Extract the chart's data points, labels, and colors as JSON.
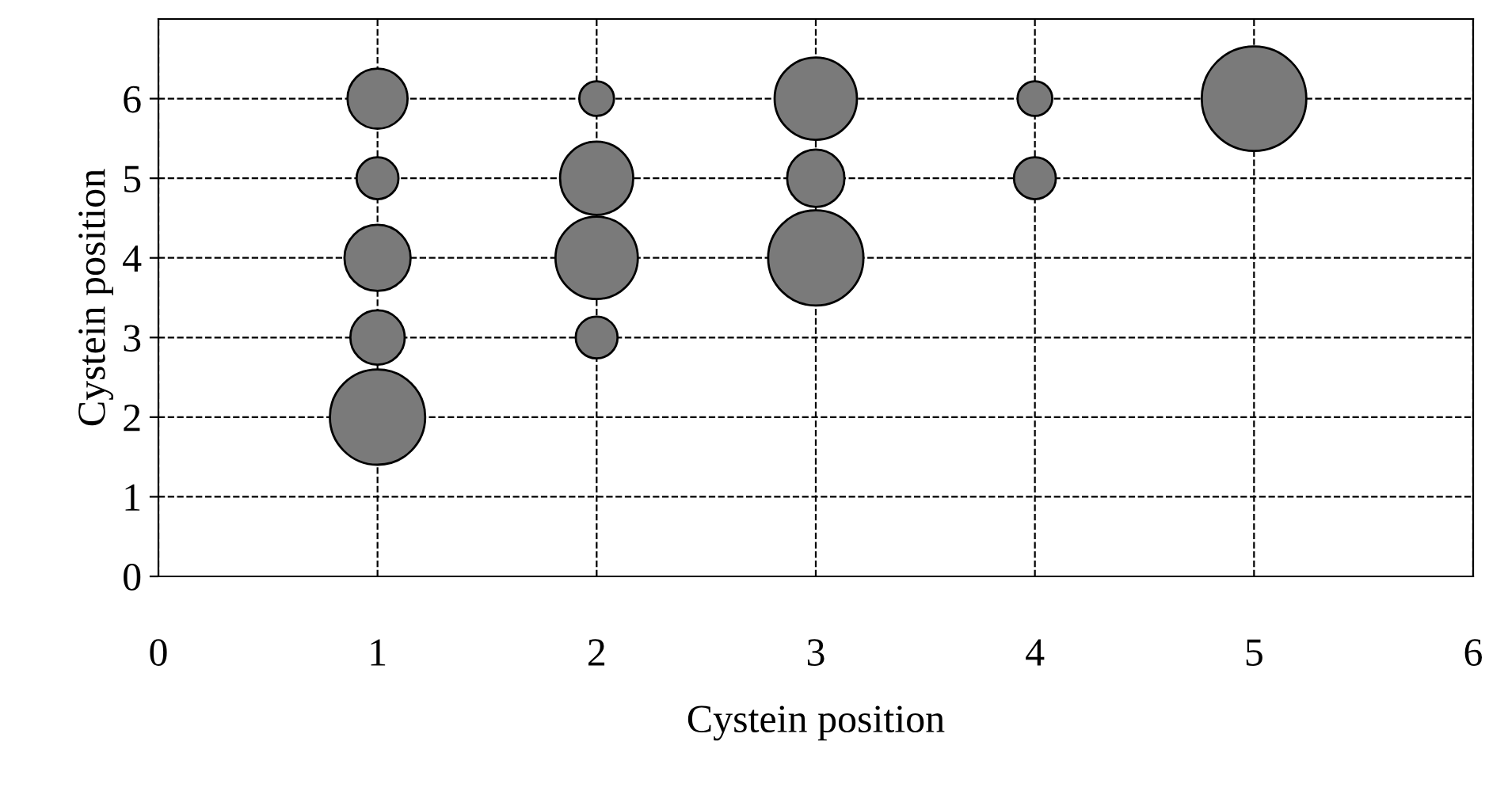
{
  "chart_data": {
    "type": "bubble",
    "xlabel": "Cystein position",
    "ylabel": "Cystein position",
    "x": [
      1,
      1,
      1,
      1,
      1,
      2,
      2,
      2,
      2,
      3,
      3,
      3,
      4,
      4,
      5
    ],
    "values": [
      6,
      5,
      4,
      3,
      2,
      6,
      5,
      4,
      3,
      6,
      5,
      4,
      6,
      5,
      6
    ],
    "sizes": [
      0.33,
      0.16,
      0.4,
      0.27,
      0.83,
      0.11,
      0.49,
      0.62,
      0.16,
      0.62,
      0.3,
      0.83,
      0.11,
      0.16,
      1
    ],
    "color": "#7a7a7a",
    "xlim": [
      0,
      6
    ],
    "xticks": [
      0,
      1,
      2,
      3,
      4,
      5,
      6
    ],
    "ylim": [
      0,
      7
    ],
    "yticks": [
      0,
      1,
      2,
      3,
      4,
      5,
      6
    ],
    "grid": true,
    "line_style": "dashed"
  }
}
